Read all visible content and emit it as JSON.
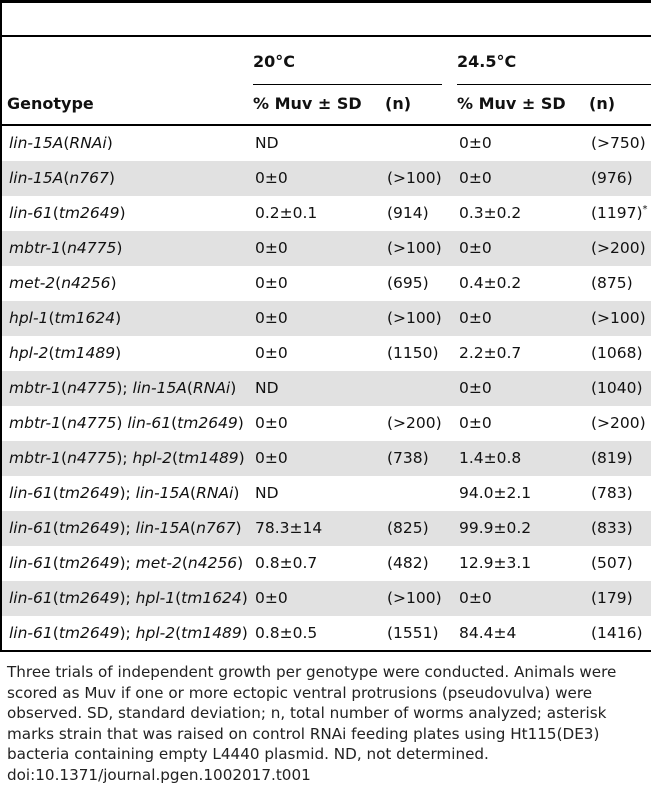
{
  "table": {
    "header": {
      "temp_20": "20°C",
      "temp_24": "24.5°C",
      "genotype": "Genotype",
      "muv_20": "% Muv ± SD",
      "n_20": "(n)",
      "muv_24": "% Muv ± SD",
      "n_24": "(n)"
    },
    "rows": [
      {
        "genotype": [
          [
            "lin-15A",
            "i"
          ],
          [
            "(",
            ""
          ],
          [
            "RNAi",
            "i"
          ],
          [
            ")",
            ""
          ]
        ],
        "muv20": "ND",
        "n20": "",
        "muv24": "0±0",
        "n24": "(>750)",
        "n24_mark": ""
      },
      {
        "genotype": [
          [
            "lin-15A",
            "i"
          ],
          [
            "(",
            ""
          ],
          [
            "n767",
            "i"
          ],
          [
            ")",
            ""
          ]
        ],
        "muv20": "0±0",
        "n20": "(>100)",
        "muv24": "0±0",
        "n24": "(976)",
        "n24_mark": ""
      },
      {
        "genotype": [
          [
            "lin-61",
            "i"
          ],
          [
            "(",
            ""
          ],
          [
            "tm2649",
            "i"
          ],
          [
            ")",
            ""
          ]
        ],
        "muv20": "0.2±0.1",
        "n20": "(914)",
        "muv24": "0.3±0.2",
        "n24": "(1197)",
        "n24_mark": "*"
      },
      {
        "genotype": [
          [
            "mbtr-1",
            "i"
          ],
          [
            "(",
            ""
          ],
          [
            "n4775",
            "i"
          ],
          [
            ")",
            ""
          ]
        ],
        "muv20": "0±0",
        "n20": "(>100)",
        "muv24": "0±0",
        "n24": "(>200)",
        "n24_mark": ""
      },
      {
        "genotype": [
          [
            "met-2",
            "i"
          ],
          [
            "(",
            ""
          ],
          [
            "n4256",
            "i"
          ],
          [
            ")",
            ""
          ]
        ],
        "muv20": "0±0",
        "n20": "(695)",
        "muv24": "0.4±0.2",
        "n24": "(875)",
        "n24_mark": ""
      },
      {
        "genotype": [
          [
            "hpl-1",
            "i"
          ],
          [
            "(",
            ""
          ],
          [
            "tm1624",
            "i"
          ],
          [
            ")",
            ""
          ]
        ],
        "muv20": "0±0",
        "n20": "(>100)",
        "muv24": "0±0",
        "n24": "(>100)",
        "n24_mark": ""
      },
      {
        "genotype": [
          [
            "hpl-2",
            "i"
          ],
          [
            "(",
            ""
          ],
          [
            "tm1489",
            "i"
          ],
          [
            ")",
            ""
          ]
        ],
        "muv20": "0±0",
        "n20": "(1150)",
        "muv24": "2.2±0.7",
        "n24": "(1068)",
        "n24_mark": ""
      },
      {
        "genotype": [
          [
            "mbtr-1",
            "i"
          ],
          [
            "(",
            ""
          ],
          [
            "n4775",
            "i"
          ],
          [
            "); ",
            ""
          ],
          [
            "lin-15A",
            "i"
          ],
          [
            "(",
            ""
          ],
          [
            "RNAi",
            "i"
          ],
          [
            ")",
            ""
          ]
        ],
        "muv20": "ND",
        "n20": "",
        "muv24": "0±0",
        "n24": "(1040)",
        "n24_mark": ""
      },
      {
        "genotype": [
          [
            "mbtr-1",
            "i"
          ],
          [
            "(",
            ""
          ],
          [
            "n4775",
            "i"
          ],
          [
            ") ",
            ""
          ],
          [
            "lin-61",
            "i"
          ],
          [
            "(",
            ""
          ],
          [
            "tm2649",
            "i"
          ],
          [
            ")",
            ""
          ]
        ],
        "muv20": "0±0",
        "n20": "(>200)",
        "muv24": "0±0",
        "n24": "(>200)",
        "n24_mark": ""
      },
      {
        "genotype": [
          [
            "mbtr-1",
            "i"
          ],
          [
            "(",
            ""
          ],
          [
            "n4775",
            "i"
          ],
          [
            "); ",
            ""
          ],
          [
            "hpl-2",
            "i"
          ],
          [
            "(",
            ""
          ],
          [
            "tm1489",
            "i"
          ],
          [
            ")",
            ""
          ]
        ],
        "muv20": "0±0",
        "n20": "(738)",
        "muv24": "1.4±0.8",
        "n24": "(819)",
        "n24_mark": ""
      },
      {
        "genotype": [
          [
            "lin-61",
            "i"
          ],
          [
            "(",
            ""
          ],
          [
            "tm2649",
            "i"
          ],
          [
            "); ",
            ""
          ],
          [
            "lin-15A",
            "i"
          ],
          [
            "(",
            ""
          ],
          [
            "RNAi",
            "i"
          ],
          [
            ")",
            ""
          ]
        ],
        "muv20": "ND",
        "n20": "",
        "muv24": "94.0±2.1",
        "n24": "(783)",
        "n24_mark": ""
      },
      {
        "genotype": [
          [
            "lin-61",
            "i"
          ],
          [
            "(",
            ""
          ],
          [
            "tm2649",
            "i"
          ],
          [
            "); ",
            ""
          ],
          [
            "lin-15A",
            "i"
          ],
          [
            "(",
            ""
          ],
          [
            "n767",
            "i"
          ],
          [
            ")",
            ""
          ]
        ],
        "muv20": "78.3±14",
        "n20": "(825)",
        "muv24": "99.9±0.2",
        "n24": "(833)",
        "n24_mark": ""
      },
      {
        "genotype": [
          [
            "lin-61",
            "i"
          ],
          [
            "(",
            ""
          ],
          [
            "tm2649",
            "i"
          ],
          [
            "); ",
            ""
          ],
          [
            "met-2",
            "i"
          ],
          [
            "(",
            ""
          ],
          [
            "n4256",
            "i"
          ],
          [
            ")",
            ""
          ]
        ],
        "muv20": "0.8±0.7",
        "n20": "(482)",
        "muv24": "12.9±3.1",
        "n24": "(507)",
        "n24_mark": ""
      },
      {
        "genotype": [
          [
            "lin-61",
            "i"
          ],
          [
            "(",
            ""
          ],
          [
            "tm2649",
            "i"
          ],
          [
            "); ",
            ""
          ],
          [
            "hpl-1",
            "i"
          ],
          [
            "(",
            ""
          ],
          [
            "tm1624",
            "i"
          ],
          [
            ")",
            ""
          ]
        ],
        "muv20": "0±0",
        "n20": "(>100)",
        "muv24": "0±0",
        "n24": "(179)",
        "n24_mark": ""
      },
      {
        "genotype": [
          [
            "lin-61",
            "i"
          ],
          [
            "(",
            ""
          ],
          [
            "tm2649",
            "i"
          ],
          [
            "); ",
            ""
          ],
          [
            "hpl-2",
            "i"
          ],
          [
            "(",
            ""
          ],
          [
            "tm1489",
            "i"
          ],
          [
            ")",
            ""
          ]
        ],
        "muv20": "0.8±0.5",
        "n20": "(1551)",
        "muv24": "84.4±4",
        "n24": "(1416)",
        "n24_mark": ""
      }
    ]
  },
  "footnote": {
    "text": "Three trials of independent growth per genotype were conducted. Animals were scored as Muv if one or more ectopic ventral protrusions (pseudovulva) were observed. SD, standard deviation; n, total number of worms analyzed; asterisk marks strain that was raised on control RNAi feeding plates using Ht115(DE3) bacteria containing empty L4440 plasmid. ND, not determined.",
    "doi": "doi:10.1371/journal.pgen.1002017.t001"
  }
}
